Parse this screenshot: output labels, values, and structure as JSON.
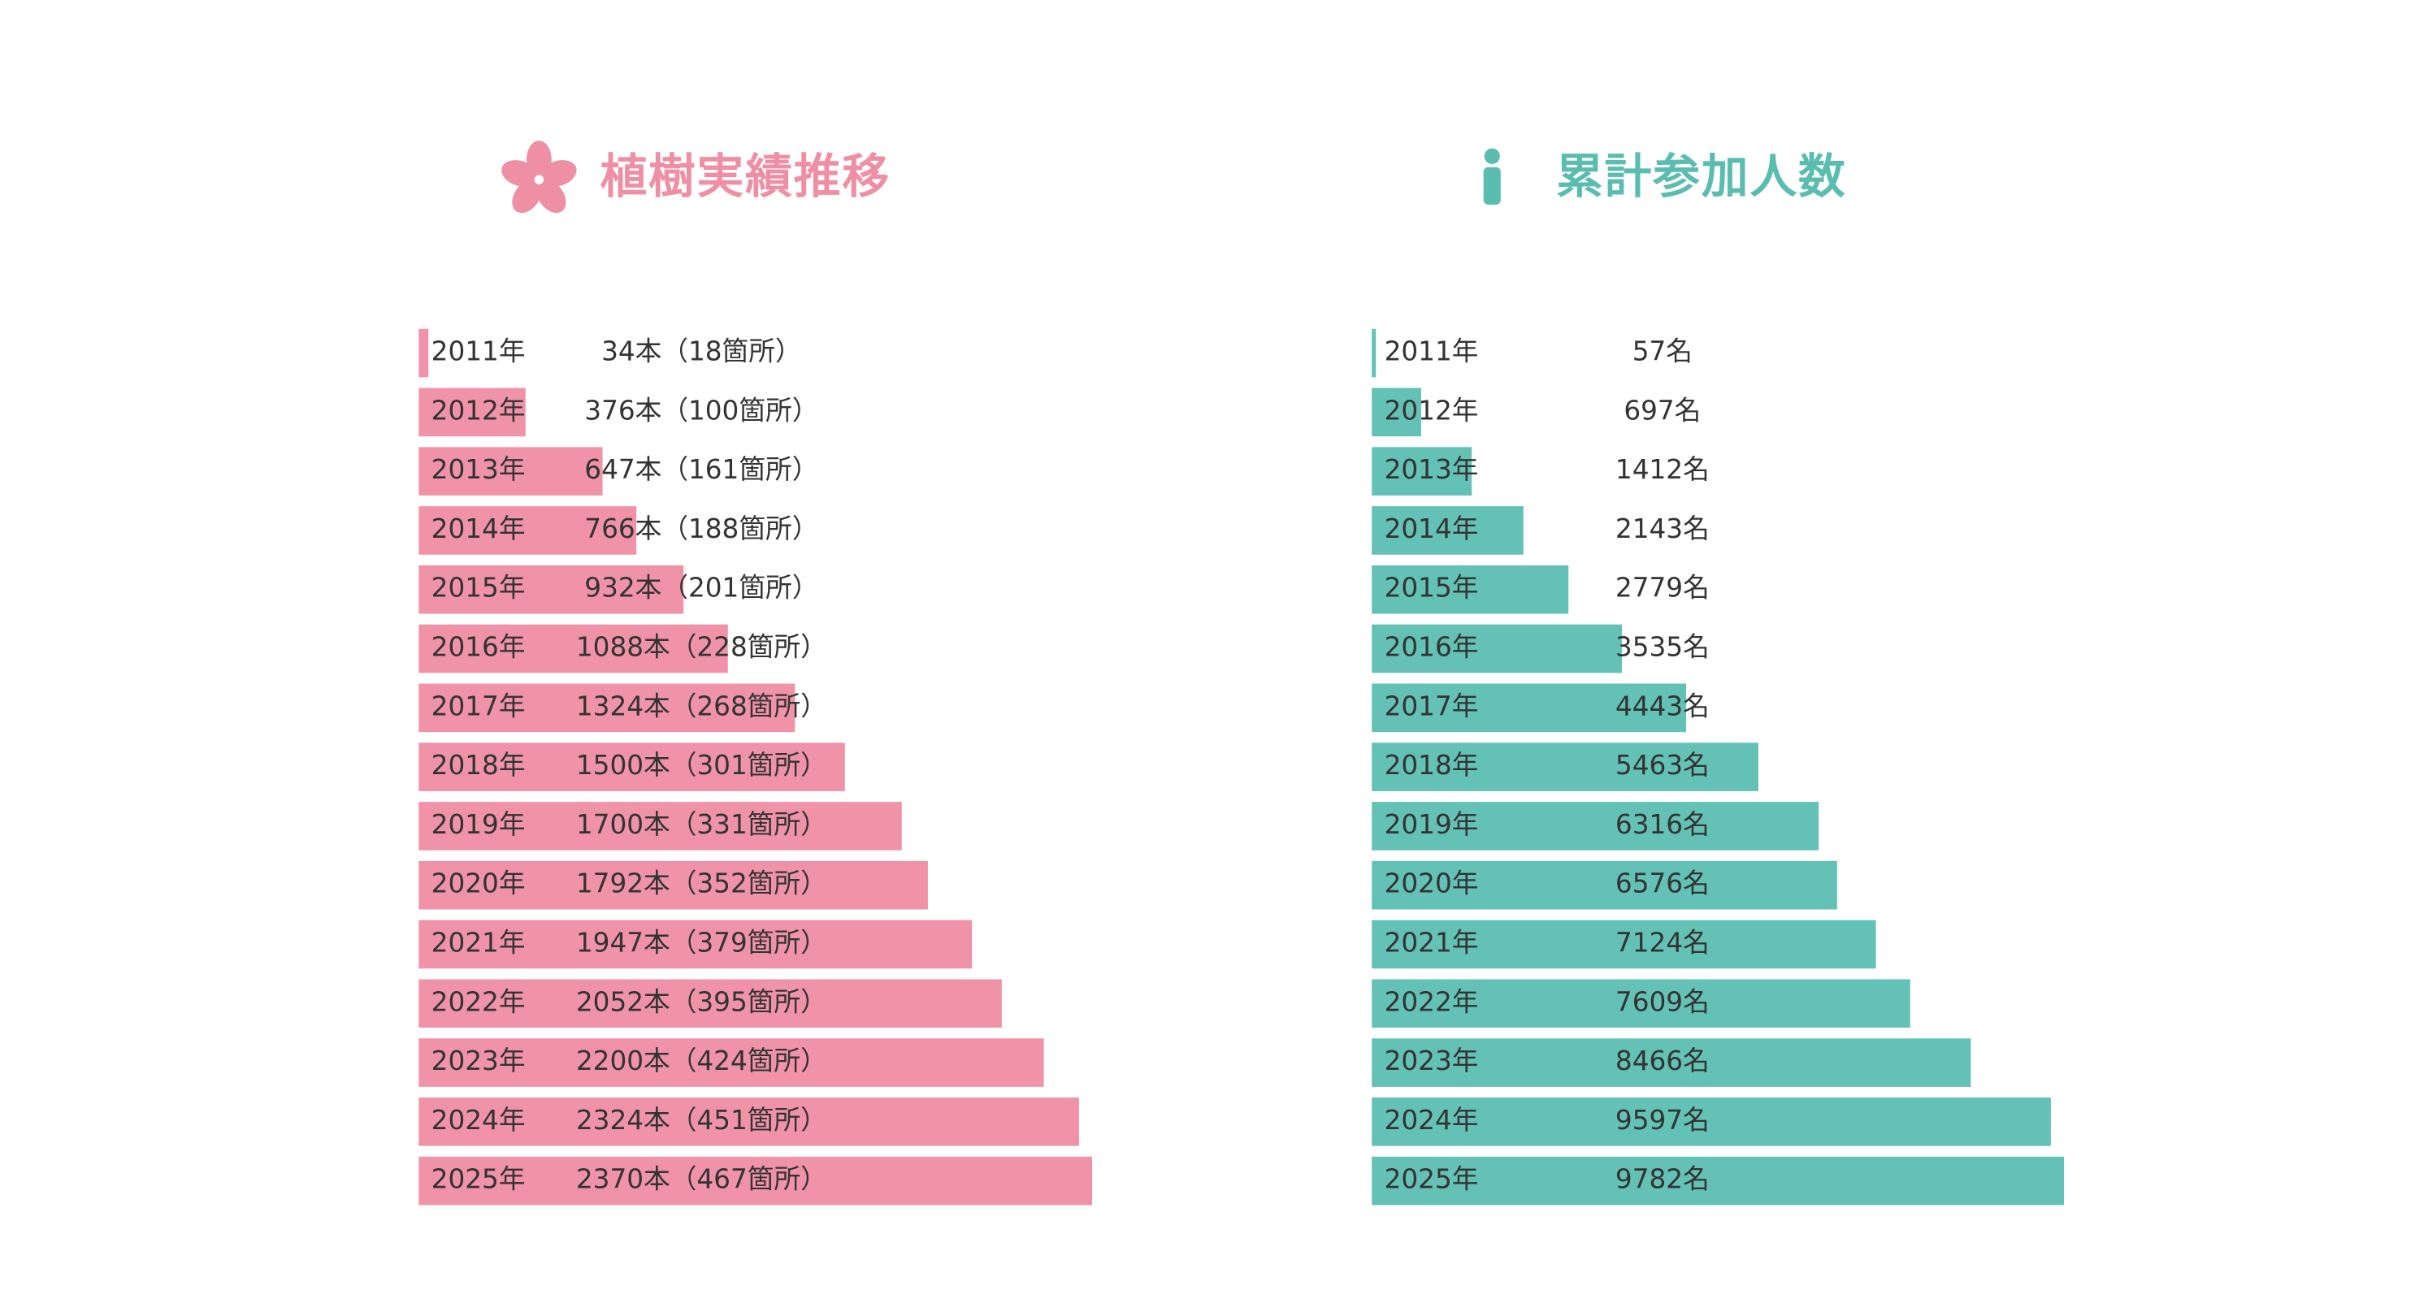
{
  "chart_data": [
    {
      "type": "bar",
      "title": "植樹実績推移",
      "color": "#f093a8",
      "title_color": "#ee8fa4",
      "categories": [
        "2011年",
        "2012年",
        "2013年",
        "2014年",
        "2015年",
        "2016年",
        "2017年",
        "2018年",
        "2019年",
        "2020年",
        "2021年",
        "2022年",
        "2023年",
        "2024年",
        "2025年"
      ],
      "values": [
        34,
        376,
        647,
        766,
        932,
        1088,
        1324,
        1500,
        1700,
        1792,
        1947,
        2052,
        2200,
        2324,
        2370
      ],
      "value_labels": [
        "34本（18箇所）",
        "376本（100箇所）",
        "647本（161箇所）",
        "766本（188箇所）",
        "932本（201箇所）",
        "1088本（228箇所）",
        "1324本（268箇所）",
        "1500本（301箇所）",
        "1700本（331箇所）",
        "1792本（352箇所）",
        "1947本（379箇所）",
        "2052本（395箇所）",
        "2200本（424箇所）",
        "2324本（451箇所）",
        "2370本（467箇所）"
      ]
    },
    {
      "type": "bar",
      "title": "累計参加人数",
      "color": "#63c1b5",
      "title_color": "#5bbcb0",
      "categories": [
        "2011年",
        "2012年",
        "2013年",
        "2014年",
        "2015年",
        "2016年",
        "2017年",
        "2018年",
        "2019年",
        "2020年",
        "2021年",
        "2022年",
        "2023年",
        "2024年",
        "2025年"
      ],
      "values": [
        57,
        697,
        1412,
        2143,
        2779,
        3535,
        4443,
        5463,
        6316,
        6576,
        7124,
        7609,
        8466,
        9597,
        9782
      ],
      "value_labels": [
        "57名",
        "697名",
        "1412名",
        "2143名",
        "2779名",
        "3535名",
        "4443名",
        "5463名",
        "6316名",
        "6576名",
        "7124名",
        "7609名",
        "8466名",
        "9597名",
        "9782名"
      ]
    }
  ]
}
